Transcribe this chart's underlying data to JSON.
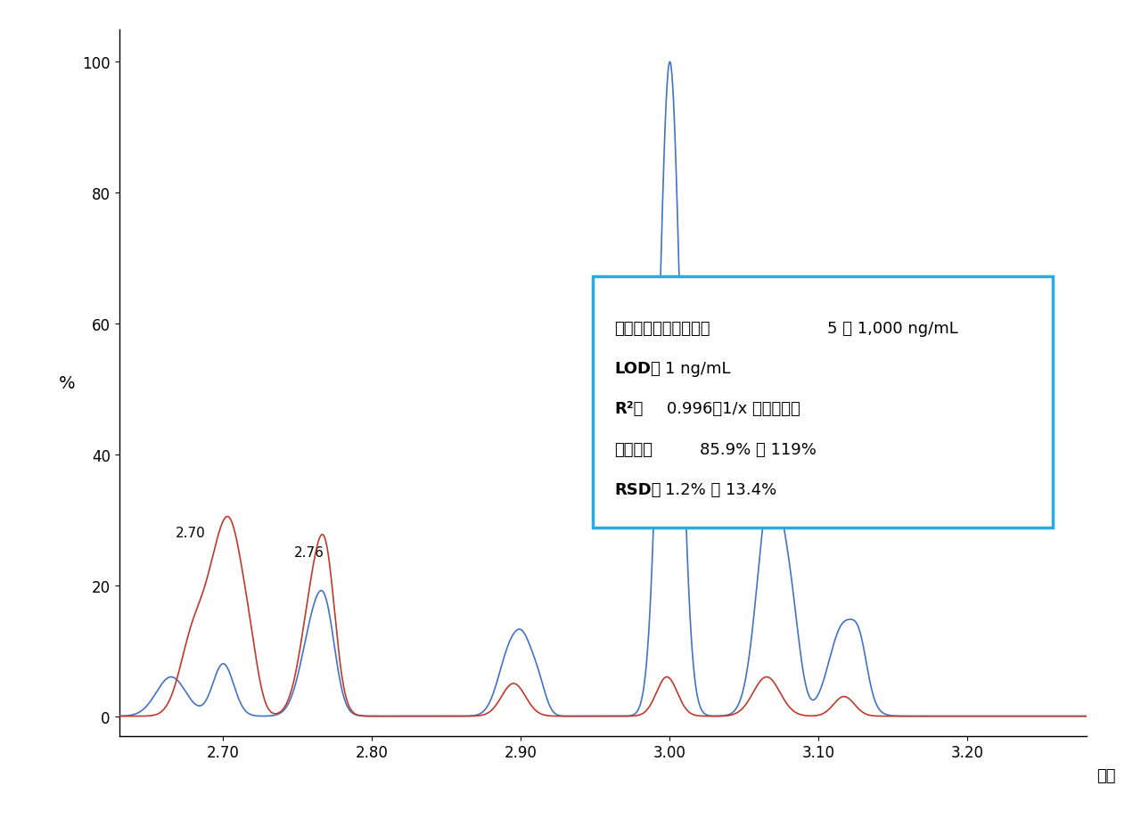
{
  "xlabel": "時間",
  "ylabel": "%",
  "xlim": [
    2.63,
    3.28
  ],
  "ylim": [
    -3,
    105
  ],
  "yticks": [
    0,
    20,
    40,
    60,
    80,
    100
  ],
  "xticks": [
    2.7,
    2.8,
    2.9,
    3.0,
    3.1,
    3.2
  ],
  "blue_color": "#4472C4",
  "red_color": "#C0392B",
  "ann1_label": "2.70",
  "ann2_label": "2.76",
  "ann1_x": 2.7,
  "ann2_x": 2.762,
  "box_lines": [
    {
      "bold": "ダイナミックレンジ：",
      "normal": "5 ～ 1,000 ng/mL"
    },
    {
      "bold": "LOD：",
      "normal": "1 ng/mL"
    },
    {
      "bold": "R²：",
      "normal": "0.996（1/x 重み付け）"
    },
    {
      "bold": "正確度：",
      "normal": "85.9% ～ 119%"
    },
    {
      "bold": "RSD：",
      "normal": "1.2% ～ 13.4%"
    }
  ],
  "box_color": "#29ABE2",
  "background_color": "#ffffff",
  "blue_peaks": [
    {
      "mu": 2.665,
      "sigma": 0.01,
      "amp": 6
    },
    {
      "mu": 2.7,
      "sigma": 0.007,
      "amp": 8
    },
    {
      "mu": 2.762,
      "sigma": 0.009,
      "amp": 15
    },
    {
      "mu": 2.77,
      "sigma": 0.006,
      "amp": 7
    },
    {
      "mu": 2.893,
      "sigma": 0.008,
      "amp": 10
    },
    {
      "mu": 2.903,
      "sigma": 0.006,
      "amp": 7
    },
    {
      "mu": 2.912,
      "sigma": 0.005,
      "amp": 4
    },
    {
      "mu": 3.0,
      "sigma": 0.007,
      "amp": 100
    },
    {
      "mu": 3.068,
      "sigma": 0.009,
      "amp": 35
    },
    {
      "mu": 3.082,
      "sigma": 0.006,
      "amp": 10
    },
    {
      "mu": 3.117,
      "sigma": 0.01,
      "amp": 14
    },
    {
      "mu": 3.128,
      "sigma": 0.005,
      "amp": 5
    }
  ],
  "red_peaks": [
    {
      "mu": 2.68,
      "sigma": 0.009,
      "amp": 12
    },
    {
      "mu": 2.698,
      "sigma": 0.009,
      "amp": 22
    },
    {
      "mu": 2.708,
      "sigma": 0.007,
      "amp": 14
    },
    {
      "mu": 2.718,
      "sigma": 0.006,
      "amp": 8
    },
    {
      "mu": 2.762,
      "sigma": 0.009,
      "amp": 20
    },
    {
      "mu": 2.77,
      "sigma": 0.006,
      "amp": 12
    },
    {
      "mu": 2.895,
      "sigma": 0.008,
      "amp": 5
    },
    {
      "mu": 2.998,
      "sigma": 0.007,
      "amp": 6
    },
    {
      "mu": 3.065,
      "sigma": 0.009,
      "amp": 6
    },
    {
      "mu": 3.117,
      "sigma": 0.007,
      "amp": 3
    }
  ]
}
